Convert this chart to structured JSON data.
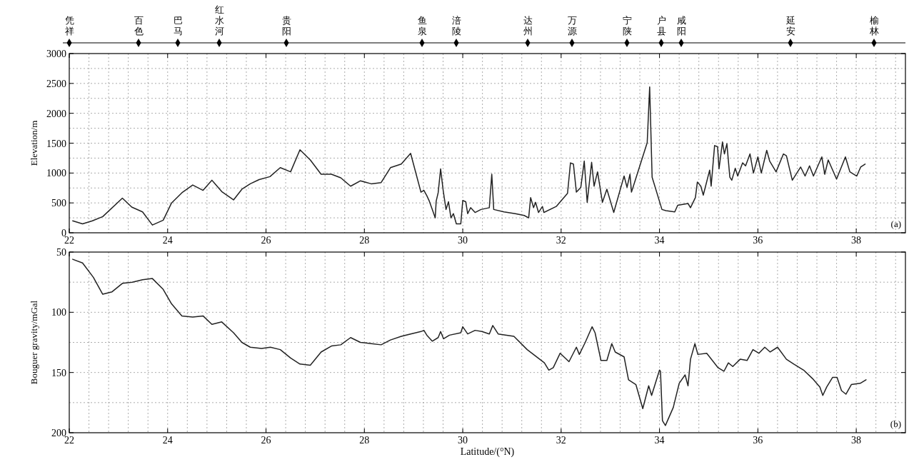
{
  "chart_data": [
    {
      "type": "other",
      "annotations": [
        "凭祥",
        "百色",
        "巴马",
        "红水河",
        "贵阳",
        "鱼泉",
        "涪陵",
        "达州",
        "万源",
        "宁陕",
        "户县",
        "咸阳",
        "延安",
        "榆林"
      ]
    },
    {
      "type": "line",
      "ylabel": "Elevation/m",
      "xlim": [
        22,
        39
      ],
      "xticks": [
        22,
        {
          "value": 22.4,
          "label": null
        },
        {
          "value": 22.8,
          "label": null
        },
        {
          "value": 23.2,
          "label": null
        },
        {
          "value": 23.6,
          "label": null
        },
        24,
        {
          "value": 24.4,
          "label": null
        },
        {
          "value": 24.8,
          "label": null
        },
        {
          "value": 25.2,
          "label": null
        },
        {
          "value": 25.6,
          "label": null
        },
        26,
        {
          "value": 26.4,
          "label": null
        },
        {
          "value": 26.8,
          "label": null
        },
        {
          "value": 27.2,
          "label": null
        },
        {
          "value": 27.6,
          "label": null
        },
        28,
        {
          "value": 28.4,
          "label": null
        },
        {
          "value": 28.8,
          "label": null
        },
        {
          "value": 29.2,
          "label": null
        },
        {
          "value": 29.6,
          "label": null
        },
        30,
        {
          "value": 30.4,
          "label": null
        },
        {
          "value": 30.8,
          "label": null
        },
        {
          "value": 31.2,
          "label": null
        },
        {
          "value": 31.6,
          "label": null
        },
        32,
        {
          "value": 32.4,
          "label": null
        },
        {
          "value": 32.8,
          "label": null
        },
        {
          "value": 33.2,
          "label": null
        },
        {
          "value": 33.6,
          "label": null
        },
        34,
        {
          "value": 34.4,
          "label": null
        },
        {
          "value": 34.8,
          "label": null
        },
        {
          "value": 35.2,
          "label": null
        },
        {
          "value": 35.6,
          "label": null
        },
        36,
        {
          "value": 36.4,
          "label": null
        },
        {
          "value": 36.8,
          "label": null
        },
        {
          "value": 37.2,
          "label": null
        },
        {
          "value": 37.6,
          "label": null
        },
        38,
        {
          "value": 38.4,
          "label": null
        },
        {
          "value": 38.8,
          "label": null
        }
      ],
      "ylim": [
        0,
        3000
      ],
      "yticks": [
        0,
        {
          "value": 250,
          "label": null
        },
        500,
        {
          "value": 750,
          "label": null
        },
        1000,
        {
          "value": 1250,
          "label": null
        },
        1500,
        {
          "value": 1750,
          "label": null
        },
        2000,
        {
          "value": 2250,
          "label": null
        },
        2500,
        {
          "value": 2750,
          "label": null
        },
        3000
      ],
      "grid": true,
      "annotations": [
        "(a)"
      ],
      "series": [
        {
          "color": "#222222",
          "x": [
            22.07,
            22.27,
            22.47,
            22.68,
            23.08,
            23.27,
            23.49,
            23.69,
            23.91,
            24.08,
            24.29,
            24.51,
            24.72,
            24.9,
            25.1,
            25.34,
            25.51,
            25.68,
            25.86,
            26.08,
            26.29,
            26.5,
            26.69,
            26.9,
            27.12,
            27.33,
            27.52,
            27.72,
            27.92,
            28.14,
            28.34,
            28.53,
            28.75,
            28.94,
            29.15,
            29.21,
            29.27,
            29.32,
            29.38,
            29.44,
            29.46,
            29.5,
            29.55,
            29.6,
            29.66,
            29.71,
            29.76,
            29.81,
            29.87,
            29.96,
            30.0,
            30.06,
            30.1,
            30.16,
            30.25,
            30.37,
            30.54,
            30.59,
            30.63,
            30.84,
            31.07,
            31.25,
            31.34,
            31.38,
            31.44,
            31.48,
            31.54,
            31.62,
            31.65,
            31.9,
            32.13,
            32.19,
            32.25,
            32.31,
            32.4,
            32.47,
            32.53,
            32.62,
            32.67,
            32.74,
            32.84,
            32.93,
            33.07,
            33.28,
            33.34,
            33.4,
            33.43,
            33.6,
            33.75,
            33.8,
            33.85,
            34.05,
            34.13,
            34.31,
            34.37,
            34.58,
            34.63,
            34.73,
            34.77,
            34.84,
            34.89,
            35.02,
            35.05,
            35.12,
            35.18,
            35.21,
            35.28,
            35.32,
            35.37,
            35.43,
            35.47,
            35.54,
            35.59,
            35.69,
            35.75,
            35.84,
            35.91,
            36.0,
            36.07,
            36.18,
            36.24,
            36.37,
            36.52,
            36.58,
            36.7,
            36.87,
            36.96,
            37.05,
            37.13,
            37.3,
            37.36,
            37.43,
            37.6,
            37.78,
            37.87,
            38.01,
            38.09,
            38.18
          ],
          "values": [
            200,
            150,
            200,
            270,
            580,
            430,
            350,
            130,
            210,
            500,
            670,
            800,
            710,
            880,
            690,
            550,
            730,
            820,
            890,
            940,
            1090,
            1020,
            1390,
            1220,
            980,
            980,
            920,
            780,
            870,
            820,
            840,
            1090,
            1150,
            1330,
            680,
            710,
            620,
            530,
            390,
            250,
            530,
            670,
            1070,
            720,
            390,
            520,
            250,
            320,
            150,
            150,
            540,
            520,
            320,
            420,
            340,
            390,
            420,
            980,
            390,
            350,
            320,
            290,
            250,
            590,
            420,
            510,
            340,
            440,
            340,
            440,
            660,
            1170,
            1150,
            680,
            760,
            1200,
            510,
            1180,
            780,
            1020,
            510,
            730,
            340,
            950,
            760,
            980,
            680,
            1120,
            1510,
            2440,
            930,
            390,
            370,
            350,
            460,
            490,
            420,
            590,
            850,
            780,
            630,
            1050,
            780,
            1460,
            1440,
            1070,
            1520,
            1320,
            1490,
            930,
            880,
            1080,
            950,
            1170,
            1120,
            1320,
            1000,
            1270,
            1000,
            1380,
            1200,
            1020,
            1320,
            1290,
            880,
            1100,
            950,
            1120,
            950,
            1270,
            980,
            1220,
            900,
            1270,
            1020,
            950,
            1100,
            1150
          ]
        }
      ]
    },
    {
      "type": "line",
      "ylabel": "Bouguer gravity/mGal",
      "xlabel": "Latitude/(°N)",
      "xlim": [
        22,
        39
      ],
      "xticks": [
        22,
        {
          "value": 22.4,
          "label": null
        },
        {
          "value": 22.8,
          "label": null
        },
        {
          "value": 23.2,
          "label": null
        },
        {
          "value": 23.6,
          "label": null
        },
        24,
        {
          "value": 24.4,
          "label": null
        },
        {
          "value": 24.8,
          "label": null
        },
        {
          "value": 25.2,
          "label": null
        },
        {
          "value": 25.6,
          "label": null
        },
        26,
        {
          "value": 26.4,
          "label": null
        },
        {
          "value": 26.8,
          "label": null
        },
        {
          "value": 27.2,
          "label": null
        },
        {
          "value": 27.6,
          "label": null
        },
        28,
        {
          "value": 28.4,
          "label": null
        },
        {
          "value": 28.8,
          "label": null
        },
        {
          "value": 29.2,
          "label": null
        },
        {
          "value": 29.6,
          "label": null
        },
        30,
        {
          "value": 30.4,
          "label": null
        },
        {
          "value": 30.8,
          "label": null
        },
        {
          "value": 31.2,
          "label": null
        },
        {
          "value": 31.6,
          "label": null
        },
        32,
        {
          "value": 32.4,
          "label": null
        },
        {
          "value": 32.8,
          "label": null
        },
        {
          "value": 33.2,
          "label": null
        },
        {
          "value": 33.6,
          "label": null
        },
        34,
        {
          "value": 34.4,
          "label": null
        },
        {
          "value": 34.8,
          "label": null
        },
        {
          "value": 35.2,
          "label": null
        },
        {
          "value": 35.6,
          "label": null
        },
        36,
        {
          "value": 36.4,
          "label": null
        },
        {
          "value": 36.8,
          "label": null
        },
        {
          "value": 37.2,
          "label": null
        },
        {
          "value": 37.6,
          "label": null
        },
        38,
        {
          "value": 38.4,
          "label": null
        },
        {
          "value": 38.8,
          "label": null
        }
      ],
      "ylim": [
        200,
        50
      ],
      "yticks": [
        50,
        {
          "value": 75,
          "label": null
        },
        100,
        {
          "value": 125,
          "label": null
        },
        150,
        {
          "value": 175,
          "label": null
        },
        200
      ],
      "grid": true,
      "annotations": [
        "(b)"
      ],
      "series": [
        {
          "color": "#222222",
          "x": [
            22.07,
            22.27,
            22.49,
            22.68,
            22.87,
            23.08,
            23.28,
            23.49,
            23.69,
            23.91,
            24.08,
            24.29,
            24.51,
            24.72,
            24.9,
            25.1,
            25.34,
            25.51,
            25.68,
            25.91,
            26.09,
            26.29,
            26.5,
            26.69,
            26.9,
            27.12,
            27.33,
            27.52,
            27.72,
            27.92,
            28.14,
            28.34,
            28.53,
            28.75,
            28.94,
            29.15,
            29.21,
            29.27,
            29.38,
            29.5,
            29.55,
            29.61,
            29.73,
            29.96,
            30.0,
            30.1,
            30.25,
            30.39,
            30.54,
            30.61,
            30.72,
            31.04,
            31.31,
            31.66,
            31.75,
            31.84,
            31.98,
            32.16,
            32.31,
            32.37,
            32.49,
            32.63,
            32.69,
            32.81,
            32.93,
            33.03,
            33.1,
            33.28,
            33.37,
            33.52,
            33.66,
            33.78,
            33.84,
            34.0,
            34.02,
            34.06,
            34.12,
            34.28,
            34.4,
            34.52,
            34.58,
            34.63,
            34.72,
            34.78,
            34.96,
            35.19,
            35.31,
            35.4,
            35.49,
            35.64,
            35.78,
            35.9,
            36.02,
            36.14,
            36.25,
            36.4,
            36.58,
            36.73,
            36.93,
            37.11,
            37.26,
            37.32,
            37.4,
            37.52,
            37.61,
            37.7,
            37.79,
            37.9,
            38.08,
            38.2
          ],
          "values": [
            56,
            59,
            71,
            85,
            83,
            76,
            75,
            73,
            72,
            81,
            93,
            103,
            104,
            103,
            110,
            108,
            117,
            125,
            129,
            130,
            129,
            131,
            138,
            143,
            144,
            133,
            128,
            127,
            121,
            125,
            126,
            127,
            123,
            120,
            118,
            116,
            115,
            119,
            124,
            121,
            116,
            122,
            119,
            117,
            112,
            118,
            115,
            116,
            118,
            111,
            118,
            120,
            131,
            142,
            148,
            146,
            134,
            141,
            129,
            135,
            125,
            112,
            117,
            140,
            140,
            126,
            133,
            137,
            156,
            160,
            180,
            161,
            169,
            148,
            149,
            190,
            194,
            179,
            159,
            152,
            161,
            139,
            126,
            135,
            134,
            146,
            149,
            142,
            145,
            139,
            140,
            131,
            134,
            129,
            133,
            129,
            139,
            143,
            148,
            155,
            162,
            169,
            162,
            154,
            154,
            165,
            168,
            160,
            159,
            156
          ]
        }
      ]
    }
  ]
}
